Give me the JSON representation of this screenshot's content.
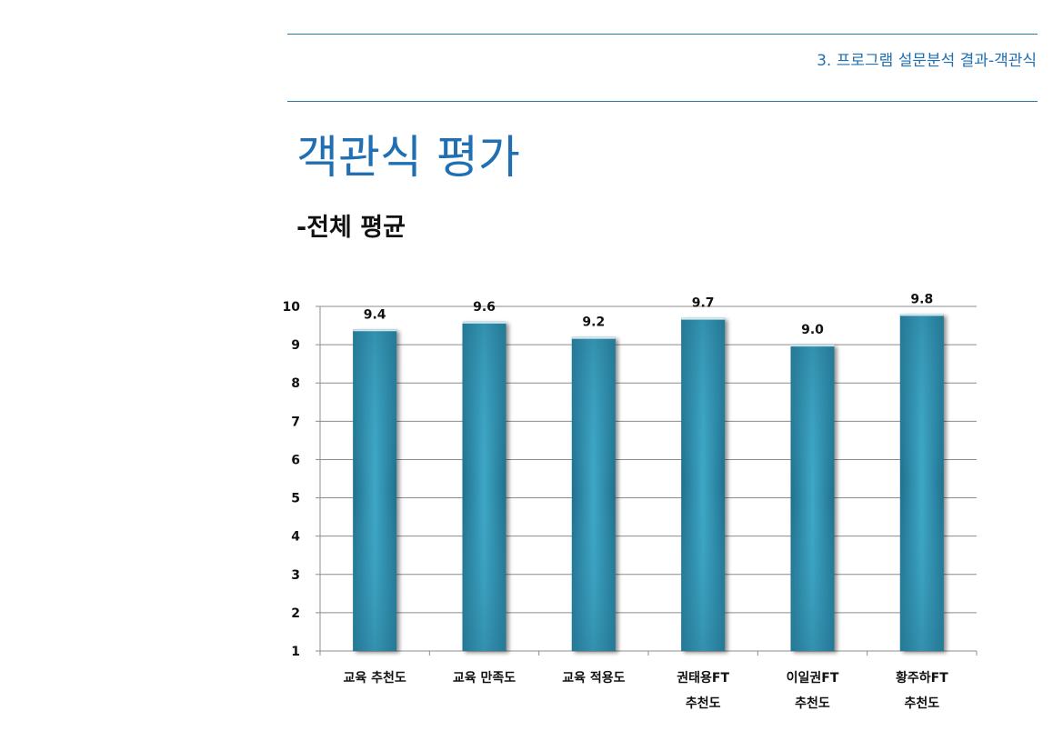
{
  "header": {
    "section_label": "3. 프로그램 설문분석 결과-객관식"
  },
  "page": {
    "title": "객관식 평가",
    "subtitle": "-전체 평균"
  },
  "chart_data": {
    "type": "bar",
    "categories": [
      [
        "교육 추천도"
      ],
      [
        "교육 만족도"
      ],
      [
        "교육 적용도"
      ],
      [
        "권태용FT",
        "추천도"
      ],
      [
        "이일권FT",
        "추천도"
      ],
      [
        "황주하FT",
        "추천도"
      ]
    ],
    "values": [
      9.4,
      9.6,
      9.2,
      9.7,
      9.0,
      9.8
    ],
    "value_labels": [
      "9.4",
      "9.6",
      "9.2",
      "9.7",
      "9.0",
      "9.8"
    ],
    "ylim": [
      1,
      10
    ],
    "yticks": [
      "1",
      "2",
      "3",
      "4",
      "5",
      "6",
      "7",
      "8",
      "9",
      "10"
    ],
    "grid": true,
    "legend": "none",
    "colors": {
      "bar_center": "#3ea7c6",
      "bar_edge": "#1f6f8c",
      "grid": "#8c8c8c",
      "axis": "#8c8c8c"
    }
  }
}
